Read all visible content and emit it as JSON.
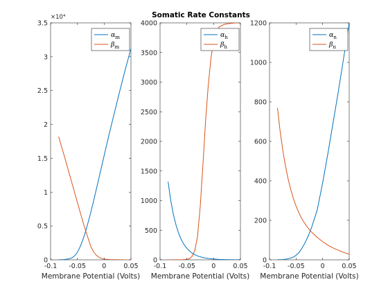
{
  "figure_title": "Somatic Rate Constants",
  "chart_data": [
    {
      "type": "line",
      "xlabel": "Membrane Potential (Volts)",
      "xlim": [
        -0.1,
        0.05
      ],
      "xticks": [
        -0.1,
        -0.05,
        0,
        0.05
      ],
      "xtick_labels": [
        "-0.1",
        "-0.05",
        "0",
        "0.05"
      ],
      "ylim": [
        0,
        3.5
      ],
      "yticks": [
        0,
        0.5,
        1,
        1.5,
        2,
        2.5,
        3,
        3.5
      ],
      "ytick_labels": [
        "0",
        "0.5",
        "1",
        "1.5",
        "2",
        "2.5",
        "3",
        "3.5"
      ],
      "y_multiplier_label": "×10⁴",
      "legend": "top-right",
      "series": [
        {
          "name": "α",
          "sub": "m",
          "color": "#0072BD",
          "x": [
            -0.085,
            -0.075,
            -0.065,
            -0.06,
            -0.055,
            -0.05,
            -0.045,
            -0.04,
            -0.035,
            -0.03,
            -0.025,
            -0.02,
            -0.01,
            0,
            0.01,
            0.02,
            0.03,
            0.04,
            0.05
          ],
          "y": [
            0.001,
            0.004,
            0.015,
            0.03,
            0.06,
            0.11,
            0.19,
            0.29,
            0.41,
            0.55,
            0.7,
            0.86,
            1.2,
            1.54,
            1.88,
            2.2,
            2.52,
            2.83,
            3.12
          ]
        },
        {
          "name": "β",
          "sub": "m",
          "color": "#D95319",
          "x": [
            -0.085,
            -0.075,
            -0.065,
            -0.055,
            -0.045,
            -0.04,
            -0.035,
            -0.03,
            -0.025,
            -0.02,
            -0.015,
            -0.01,
            -0.005,
            0,
            0.01,
            0.02,
            0.03,
            0.04,
            0.05
          ],
          "y": [
            1.82,
            1.55,
            1.27,
            0.99,
            0.71,
            0.57,
            0.44,
            0.32,
            0.2,
            0.12,
            0.07,
            0.04,
            0.02,
            0.01,
            0.004,
            0.002,
            0.001,
            0,
            0
          ]
        }
      ]
    },
    {
      "type": "line",
      "xlabel": "Membrane Potential (Volts)",
      "xlim": [
        -0.1,
        0.05
      ],
      "xticks": [
        -0.1,
        -0.05,
        0,
        0.05
      ],
      "xtick_labels": [
        "-0.1",
        "-0.05",
        "0",
        "0.05"
      ],
      "ylim": [
        0,
        4000
      ],
      "yticks": [
        0,
        500,
        1000,
        1500,
        2000,
        2500,
        3000,
        3500,
        4000
      ],
      "ytick_labels": [
        "0",
        "500",
        "1000",
        "1500",
        "2000",
        "2500",
        "3000",
        "3500",
        "4000"
      ],
      "legend": "top-right",
      "series": [
        {
          "name": "α",
          "sub": "h",
          "color": "#0072BD",
          "x": [
            -0.085,
            -0.08,
            -0.075,
            -0.07,
            -0.065,
            -0.06,
            -0.055,
            -0.05,
            -0.045,
            -0.04,
            -0.035,
            -0.03,
            -0.02,
            -0.01,
            0,
            0.01,
            0.02,
            0.03,
            0.04,
            0.05
          ],
          "y": [
            1320,
            1000,
            760,
            580,
            440,
            335,
            255,
            195,
            148,
            113,
            86,
            65,
            38,
            22,
            13,
            8,
            5,
            3,
            2,
            1
          ]
        },
        {
          "name": "β",
          "sub": "h",
          "color": "#D95319",
          "x": [
            -0.085,
            -0.06,
            -0.05,
            -0.045,
            -0.04,
            -0.035,
            -0.03,
            -0.025,
            -0.02,
            -0.015,
            -0.01,
            -0.005,
            0,
            0.005,
            0.01,
            0.02,
            0.03,
            0.04,
            0.05
          ],
          "y": [
            0,
            2,
            8,
            20,
            60,
            160,
            400,
            900,
            1600,
            2350,
            2950,
            3400,
            3700,
            3850,
            3930,
            3975,
            3990,
            3998,
            4000
          ]
        }
      ]
    },
    {
      "type": "line",
      "xlabel": "Membrane Potential (Volts)",
      "xlim": [
        -0.1,
        0.05
      ],
      "xticks": [
        -0.1,
        -0.05,
        0,
        0.05
      ],
      "xtick_labels": [
        "-0.1",
        "-0.05",
        "0",
        "0.05"
      ],
      "ylim": [
        0,
        1200
      ],
      "yticks": [
        0,
        200,
        400,
        600,
        800,
        1000,
        1200
      ],
      "ytick_labels": [
        "0",
        "200",
        "400",
        "600",
        "800",
        "1000",
        "1200"
      ],
      "legend": "top-right",
      "series": [
        {
          "name": "α",
          "sub": "n",
          "color": "#0072BD",
          "x": [
            -0.085,
            -0.075,
            -0.065,
            -0.055,
            -0.05,
            -0.045,
            -0.04,
            -0.035,
            -0.03,
            -0.025,
            -0.02,
            -0.01,
            0,
            0.01,
            0.02,
            0.03,
            0.04,
            0.05
          ],
          "y": [
            0.5,
            1.5,
            5,
            14,
            23,
            36,
            54,
            77,
            104,
            135,
            170,
            255,
            390,
            540,
            700,
            860,
            1030,
            1200
          ]
        },
        {
          "name": "β",
          "sub": "n",
          "color": "#D95319",
          "x": [
            -0.085,
            -0.08,
            -0.075,
            -0.07,
            -0.065,
            -0.06,
            -0.055,
            -0.05,
            -0.045,
            -0.04,
            -0.035,
            -0.03,
            -0.025,
            -0.02,
            -0.01,
            0,
            0.01,
            0.02,
            0.03,
            0.04,
            0.05
          ],
          "y": [
            770,
            650,
            555,
            475,
            410,
            355,
            310,
            272,
            240,
            212,
            190,
            170,
            153,
            138,
            113,
            92,
            74,
            60,
            48,
            37,
            28
          ]
        }
      ]
    }
  ]
}
